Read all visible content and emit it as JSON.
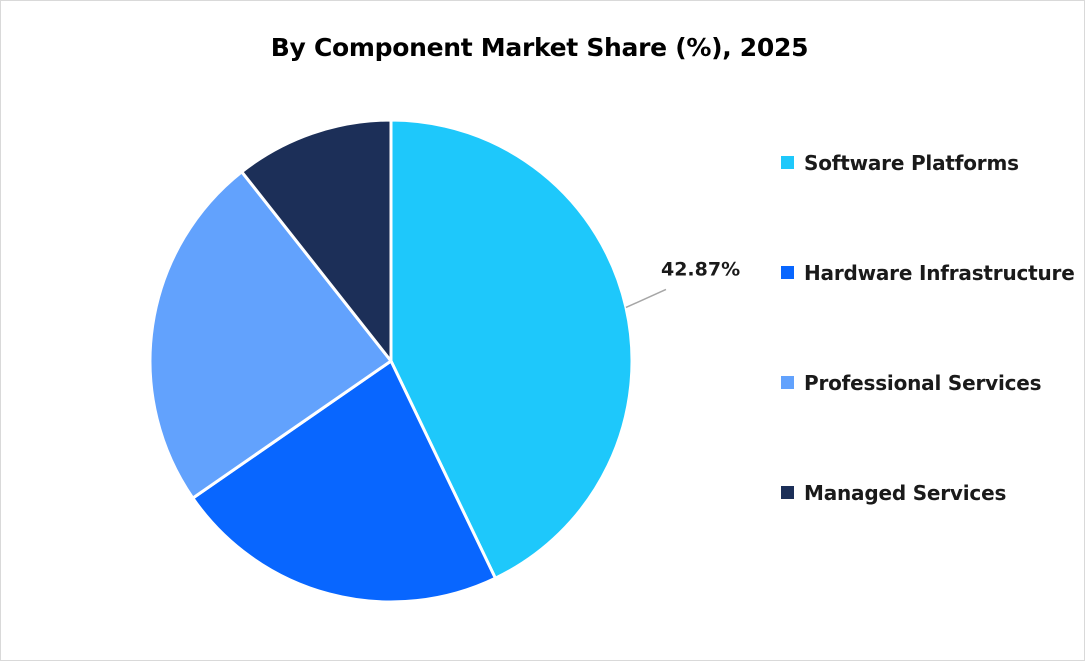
{
  "chart_data": {
    "type": "pie",
    "title": "By Component Market Share (%), 2025",
    "categories": [
      "Software Platforms",
      "Hardware Infrastructure",
      "Professional Services",
      "Managed Services"
    ],
    "values": [
      42.87,
      22.5,
      24.0,
      10.63
    ],
    "colors": [
      "#1ec8fb",
      "#0866ff",
      "#62a2fd",
      "#1c2f58"
    ],
    "data_labels": [
      "42.87%",
      null,
      null,
      null
    ],
    "legend_position": "right"
  }
}
